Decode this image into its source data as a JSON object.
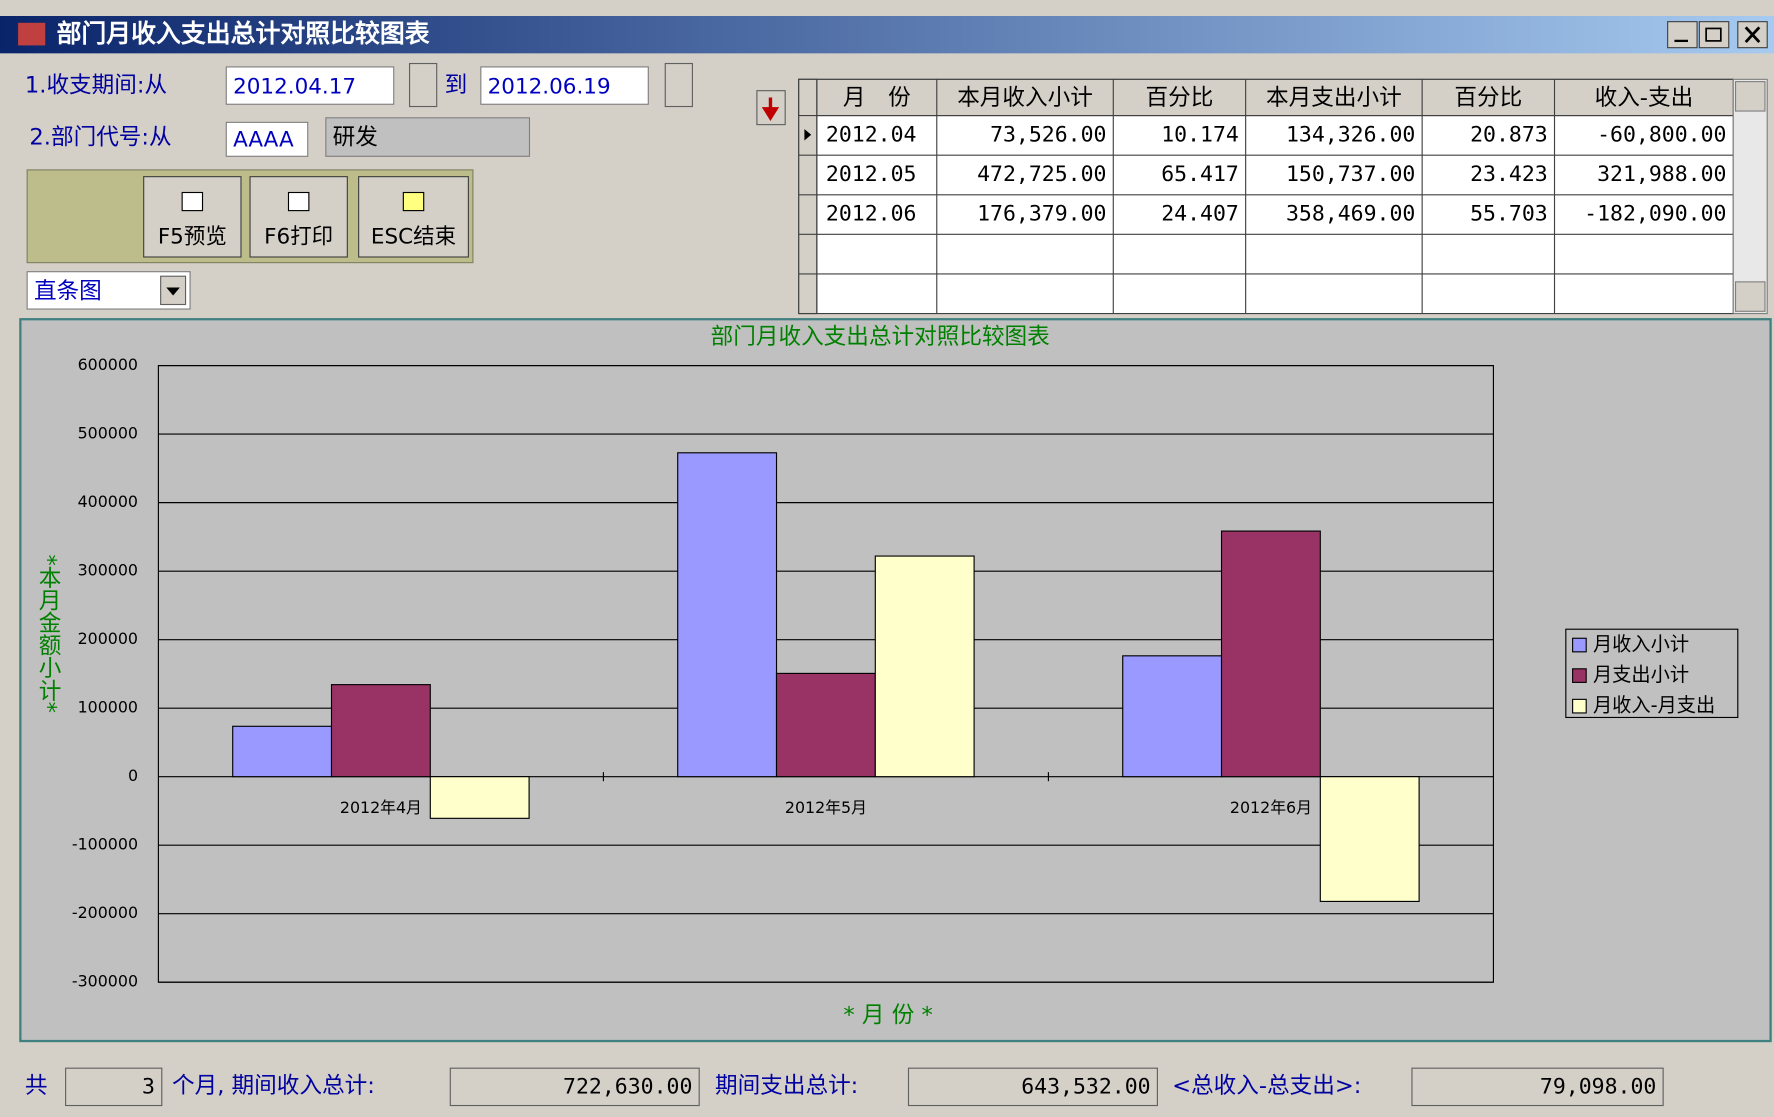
{
  "window": {
    "title": "部门月收入支出总计对照比较图表"
  },
  "form": {
    "period_label": "1.收支期间:从",
    "period_from": "2012.04.17",
    "to_label": "到",
    "period_to": "2012.06.19",
    "dept_label": "2.部门代号:从",
    "dept_code": "AAAA",
    "dept_name": "研发",
    "chart_select": "直条图"
  },
  "buttons": [
    {
      "label": "F5预览"
    },
    {
      "label": "F6打印"
    },
    {
      "label": "ESC结束"
    }
  ],
  "table": {
    "columns": [
      "月　份",
      "本月收入小计",
      "百分比",
      "本月支出小计",
      "百分比",
      "收入-支出"
    ],
    "rows": [
      [
        "2012.04",
        "73,526.00",
        "10.174",
        "134,326.00",
        "20.873",
        "-60,800.00"
      ],
      [
        "2012.05",
        "472,725.00",
        "65.417",
        "150,737.00",
        "23.423",
        "321,988.00"
      ],
      [
        "2012.06",
        "176,379.00",
        "24.407",
        "358,469.00",
        "55.703",
        "-182,090.00"
      ]
    ]
  },
  "chart_data": {
    "type": "bar",
    "title": "部门月收入支出总计对照比较图表",
    "y_label": "*本月金额小计*",
    "x_label": "* 月 份 *",
    "categories": [
      "2012年4月",
      "2012年5月",
      "2012年6月"
    ],
    "series": [
      {
        "name": "月收入小计",
        "color": "#9999ff",
        "values": [
          73526,
          472725,
          176379
        ]
      },
      {
        "name": "月支出小计",
        "color": "#993366",
        "values": [
          134326,
          150737,
          358469
        ]
      },
      {
        "name": "月收入-月支出",
        "color": "#ffffcc",
        "values": [
          -60800,
          321988,
          -182090
        ]
      }
    ],
    "ylim": [
      -300000,
      600000
    ],
    "yticks": [
      -300000,
      -200000,
      -100000,
      0,
      100000,
      200000,
      300000,
      400000,
      500000,
      600000
    ],
    "grid": true,
    "legend": "right"
  },
  "footer": {
    "count_prefix": "共",
    "count": "3",
    "income_label": "个月, 期间收入总计:",
    "income_total": "722,630.00",
    "expense_label": "期间支出总计:",
    "expense_total": "643,532.00",
    "diff_label": "<总收入-总支出>:",
    "diff_total": "79,098.00"
  }
}
